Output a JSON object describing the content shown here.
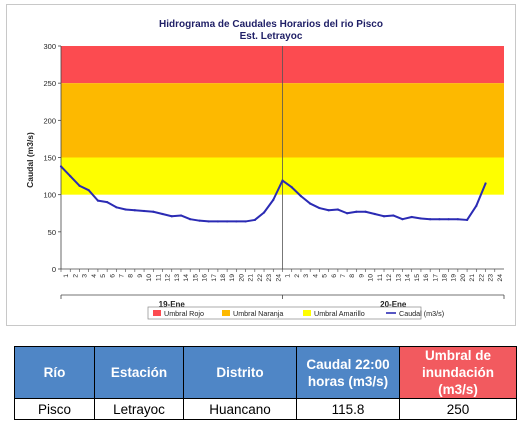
{
  "chart_data": {
    "type": "line",
    "title": "Hidrograma de Caudales Horarios del rio Pisco",
    "subtitle": "Est. Letrayoc",
    "ylabel": "Caudal  (m3/s)",
    "ylim": [
      0,
      300
    ],
    "yticks": [
      0,
      50,
      100,
      150,
      200,
      250,
      300
    ],
    "x_tick_labels": [
      "1",
      "2",
      "3",
      "4",
      "5",
      "6",
      "7",
      "8",
      "9",
      "10",
      "11",
      "12",
      "13",
      "14",
      "15",
      "16",
      "17",
      "18",
      "19",
      "20",
      "21",
      "22",
      "23",
      "24",
      "1",
      "2",
      "3",
      "4",
      "5",
      "6",
      "7",
      "8",
      "9",
      "10",
      "11",
      "12",
      "13",
      "14",
      "15",
      "16",
      "17",
      "18",
      "19",
      "20",
      "21",
      "22",
      "23",
      "24"
    ],
    "day_labels": [
      "19-Ene",
      "20-Ene"
    ],
    "legend_position": "bottom",
    "grid": false,
    "thresholds": [
      {
        "name": "Umbral Rojo",
        "from": 250,
        "to": 300,
        "color": "#fc4b50"
      },
      {
        "name": "Umbral Naranja",
        "from": 150,
        "to": 250,
        "color": "#fdb900"
      },
      {
        "name": "Umbral Amarillo",
        "from": 100,
        "to": 150,
        "color": "#fefe00"
      }
    ],
    "series": [
      {
        "name": "Caudal (m3/s)",
        "color": "#2b2bb4",
        "x": [
          0,
          1,
          2,
          3,
          4,
          5,
          6,
          7,
          8,
          9,
          10,
          11,
          12,
          13,
          14,
          15,
          16,
          17,
          18,
          19,
          20,
          21,
          22,
          23,
          24,
          25,
          26,
          27,
          28,
          29,
          30,
          31,
          32,
          33,
          34,
          35,
          36,
          37,
          38,
          39,
          40,
          41,
          42,
          43,
          44,
          45,
          46
        ],
        "values": [
          138,
          125,
          112,
          106,
          92,
          90,
          83,
          80,
          79,
          78,
          77,
          74,
          71,
          72,
          67,
          65,
          64,
          64,
          64,
          64,
          64,
          66,
          76,
          93,
          119,
          110,
          98,
          88,
          82,
          79,
          80,
          75,
          77,
          77,
          74,
          71,
          72,
          67,
          70,
          68,
          67,
          67,
          67,
          67,
          66,
          85,
          115
        ]
      }
    ]
  },
  "table": {
    "headers": {
      "rio": "Río",
      "estacion": "Estación",
      "distrito": "Distrito",
      "caudal": "Caudal 22:00 horas (m3/s)",
      "umbral": "Umbral de inundación (m3/s)"
    },
    "row": {
      "rio": "Pisco",
      "estacion": "Letrayoc",
      "distrito": "Huancano",
      "caudal": "115.8",
      "umbral": "250"
    }
  }
}
